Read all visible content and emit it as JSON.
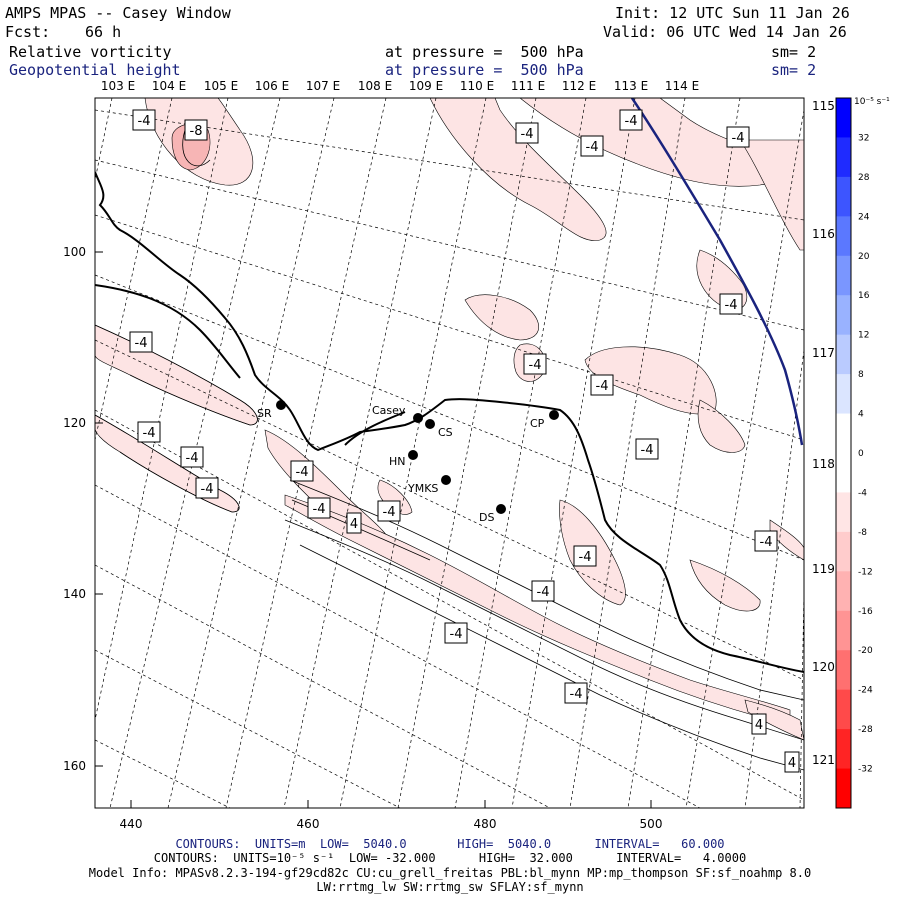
{
  "header": {
    "model": "AMPS MPAS -- Casey Window",
    "init": "Init: 12 UTC Sun 11 Jan 26",
    "fcst_label": "Fcst:",
    "fcst_value": "66 h",
    "valid": "Valid: 06 UTC Wed 14 Jan 26",
    "field1": "Relative vorticity",
    "field1_level": "at pressure =  500 hPa",
    "field1_sm": "sm= 2",
    "field2": "Geopotential height",
    "field2_level": "at pressure =  500 hPa",
    "field2_sm": "sm= 2"
  },
  "axes": {
    "x_ticks": [
      "440",
      "460",
      "480",
      "500"
    ],
    "y_ticks": [
      "100",
      "120",
      "140",
      "160"
    ],
    "lon_top": [
      "103 E",
      "104 E",
      "105 E",
      "106 E",
      "107 E",
      "108 E",
      "109 E",
      "110 E",
      "111 E",
      "112 E",
      "113 E",
      "114 E"
    ],
    "lon_right": [
      "115 E",
      "116 E",
      "117 E",
      "118 E",
      "119 E",
      "120 E",
      "121 E"
    ]
  },
  "stations": [
    {
      "name": "SR"
    },
    {
      "name": "Casey"
    },
    {
      "name": "CS"
    },
    {
      "name": "CP"
    },
    {
      "name": "HN"
    },
    {
      "name": "YMKS"
    },
    {
      "name": "DS"
    }
  ],
  "contour_labels": {
    "vorticity": [
      "-4",
      "-8",
      "-4",
      "-4",
      "-4",
      "-4",
      "-4",
      "-4",
      "-4",
      "-4",
      "-4",
      "-4",
      "-4",
      "-4",
      "-4",
      "-4",
      "-4",
      "-4",
      "-4",
      "-4",
      "-4",
      "-4"
    ],
    "height": [
      "4",
      "4",
      "4",
      "4"
    ]
  },
  "colorbar": {
    "unit": "10⁻⁵ s⁻¹",
    "labels": [
      "32",
      "28",
      "24",
      "20",
      "16",
      "12",
      "8",
      "4",
      "0",
      "-4",
      "-8",
      "-12",
      "-16",
      "-20",
      "-24",
      "-28",
      "-32"
    ],
    "colors": [
      "#0000ff",
      "#1f2bff",
      "#3d55ff",
      "#5b78ff",
      "#7a96ff",
      "#99b2ff",
      "#bacbff",
      "#dbe5ff",
      "#ffffff",
      "#ffffff",
      "#ffe5e5",
      "#ffcccc",
      "#ffb2b2",
      "#ff9494",
      "#ff7070",
      "#ff4a4a",
      "#ff2424",
      "#ff0000"
    ]
  },
  "colors": {
    "height_contour": "#1a237e",
    "vort_fill": "#fde4e4",
    "vort_fill_strong": "#f7b5b5"
  },
  "footer": {
    "line1": "CONTOURS:  UNITS=m  LOW=  5040.0       HIGH=  5040.0      INTERVAL=   60.000",
    "line2": "CONTOURS:  UNITS=10⁻⁵ s⁻¹  LOW= -32.000      HIGH=  32.000      INTERVAL=   4.0000",
    "line3": "Model Info: MPASv8.2.3-194-gf29cd82c CU:cu_grell_freitas PBL:bl_mynn MP:mp_thompson SF:sf_noahmp 8.0",
    "line4": "LW:rrtmg_lw SW:rrtmg_sw SFLAY:sf_mynn"
  }
}
